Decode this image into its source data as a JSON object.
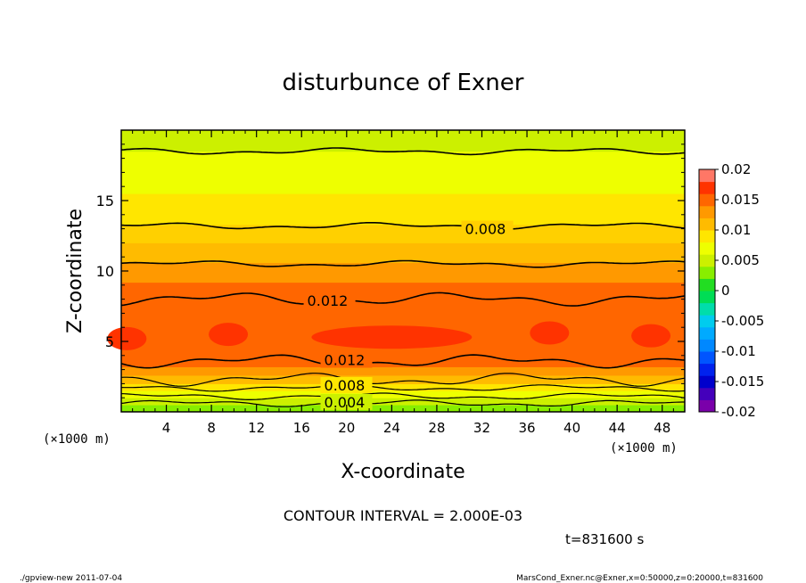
{
  "chart_data": {
    "type": "heatmap",
    "title": "disturbunce of Exner",
    "xlabel": "X-coordinate",
    "ylabel": "Z-coordinate",
    "x_unit": "(×1000 m)",
    "xlim": [
      0,
      50
    ],
    "ylim": [
      0,
      20
    ],
    "x_ticks": [
      4,
      8,
      12,
      16,
      20,
      24,
      28,
      32,
      36,
      40,
      44,
      48
    ],
    "y_ticks": [
      5,
      10,
      15
    ],
    "contour_interval_label": "CONTOUR INTERVAL = 2.000E-03",
    "contour_labels": [
      {
        "value": "0.008",
        "x": 30.5,
        "z": 13.0
      },
      {
        "value": "0.012",
        "x": 16.5,
        "z": 7.9
      },
      {
        "value": "0.012",
        "x": 18.0,
        "z": 3.7
      },
      {
        "value": "0.008",
        "x": 18.0,
        "z": 1.9
      },
      {
        "value": "0.004",
        "x": 18.0,
        "z": 0.7
      }
    ],
    "colorbar": {
      "labels": [
        "0.02",
        "0.015",
        "0.01",
        "0.005",
        "0",
        "-0.005",
        "-0.01",
        "-0.015",
        "-0.02"
      ],
      "levels": [
        -0.02,
        -0.018,
        -0.016,
        -0.014,
        -0.012,
        -0.01,
        -0.008,
        -0.006,
        -0.004,
        -0.002,
        0,
        0.002,
        0.004,
        0.006,
        0.008,
        0.01,
        0.012,
        0.014,
        0.016,
        0.018,
        0.02
      ],
      "colors": [
        "#7a00aa",
        "#4400bb",
        "#0000cc",
        "#0022ee",
        "#0055ff",
        "#0088ff",
        "#00aaff",
        "#00ccee",
        "#00ddaa",
        "#00dd55",
        "#22dd22",
        "#88ee00",
        "#ccf000",
        "#eeff00",
        "#ffe600",
        "#ffbb00",
        "#ff9900",
        "#ff6600",
        "#ff3300",
        "#ff7766"
      ]
    },
    "bands": [
      {
        "z0": 0.0,
        "z1": 0.5,
        "value": 0.003,
        "color": "#88ee00"
      },
      {
        "z0": 0.5,
        "z1": 1.0,
        "value": 0.005,
        "color": "#ccf000"
      },
      {
        "z0": 1.0,
        "z1": 1.5,
        "value": 0.007,
        "color": "#eeff00"
      },
      {
        "z0": 1.5,
        "z1": 2.0,
        "value": 0.009,
        "color": "#ffe600"
      },
      {
        "z0": 2.0,
        "z1": 2.6,
        "value": 0.011,
        "color": "#ffbb00"
      },
      {
        "z0": 2.6,
        "z1": 3.2,
        "value": 0.013,
        "color": "#ff9900"
      },
      {
        "z0": 3.2,
        "z1": 3.8,
        "value": 0.013,
        "color": "#ff6600"
      },
      {
        "z0": 3.8,
        "z1": 8.0,
        "value": 0.015,
        "color": "#ff6600"
      },
      {
        "z0": 8.0,
        "z1": 9.2,
        "value": 0.013,
        "color": "#ff6600"
      },
      {
        "z0": 9.2,
        "z1": 10.6,
        "value": 0.011,
        "color": "#ff9900"
      },
      {
        "z0": 10.6,
        "z1": 12.0,
        "value": 0.01,
        "color": "#ffbb00"
      },
      {
        "z0": 12.0,
        "z1": 13.3,
        "value": 0.009,
        "color": "#ffd000"
      },
      {
        "z0": 13.3,
        "z1": 15.5,
        "value": 0.007,
        "color": "#ffe600"
      },
      {
        "z0": 15.5,
        "z1": 18.5,
        "value": 0.005,
        "color": "#eeff00"
      },
      {
        "z0": 18.5,
        "z1": 20.0,
        "value": 0.003,
        "color": "#ccf000"
      }
    ],
    "contours": [
      {
        "value": 0.004,
        "z": 0.6
      },
      {
        "value": 0.006,
        "z": 1.1
      },
      {
        "value": 0.008,
        "z": 1.7
      },
      {
        "value": 0.01,
        "z": 2.3
      },
      {
        "value": 0.012,
        "z": 3.6
      },
      {
        "value": 0.012,
        "z": 8.0
      },
      {
        "value": 0.01,
        "z": 10.5
      },
      {
        "value": 0.008,
        "z": 13.2
      },
      {
        "value": 0.006,
        "z": 18.5
      }
    ],
    "peak_blobs": [
      {
        "x": 0.5,
        "z": 5.2,
        "color": "#ff3300"
      },
      {
        "x": 9.5,
        "z": 5.5,
        "color": "#ff3300"
      },
      {
        "x": 24.0,
        "z": 5.3,
        "color": "#ff3300"
      },
      {
        "x": 38.0,
        "z": 5.6,
        "color": "#ff3300"
      },
      {
        "x": 47.0,
        "z": 5.4,
        "color": "#ff3300"
      }
    ]
  },
  "footer": {
    "time": "t=831600 s",
    "left": "./gpview-new  2011-07-04",
    "right": "MarsCond_Exner.nc@Exner,x=0:50000,z=0:20000,t=831600"
  }
}
